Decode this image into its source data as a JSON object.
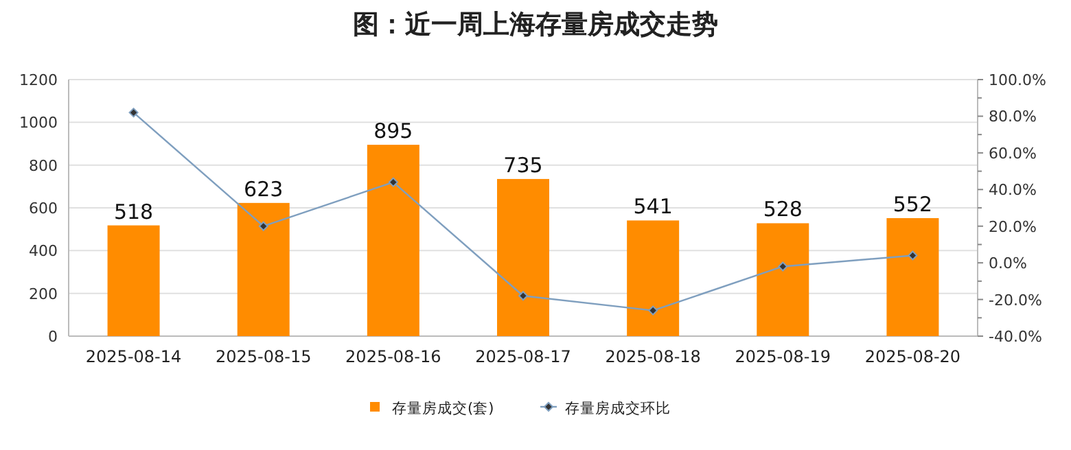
{
  "chart_data": {
    "type": "bar",
    "title": "图：近一周上海存量房成交走势",
    "categories": [
      "2025-08-14",
      "2025-08-15",
      "2025-08-16",
      "2025-08-17",
      "2025-08-18",
      "2025-08-19",
      "2025-08-20"
    ],
    "series": [
      {
        "name": "存量房成交(套)",
        "color": "#ff8c00",
        "values": [
          518,
          623,
          895,
          735,
          541,
          528,
          552
        ],
        "value_labels": [
          "518",
          "623",
          "895",
          "735",
          "541",
          "528",
          "552"
        ]
      },
      {
        "name": "存量房成交环比",
        "type": "line",
        "axis": "y2",
        "color": "#7f9fbf",
        "marker": "diamond",
        "values": [
          82,
          20,
          44,
          -18,
          -26,
          -2,
          4
        ]
      }
    ],
    "ylim": [
      0,
      1200
    ],
    "yticks": [
      0,
      200,
      400,
      600,
      800,
      1000,
      1200
    ],
    "y2lim": [
      -40,
      100
    ],
    "y2ticks": [
      {
        "value": -40,
        "label": "-40.0%"
      },
      {
        "value": -20,
        "label": "-20.0%"
      },
      {
        "value": 0,
        "label": "0.0%"
      },
      {
        "value": 20,
        "label": "20.0%"
      },
      {
        "value": 40,
        "label": "40.0%"
      },
      {
        "value": 60,
        "label": "60.0%"
      },
      {
        "value": 80,
        "label": "80.0%"
      },
      {
        "value": 100,
        "label": "100.0%"
      }
    ],
    "grid": "y",
    "legend": "bottom"
  }
}
